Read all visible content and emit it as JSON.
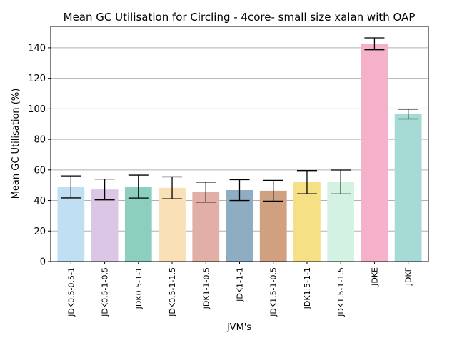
{
  "chart_data": {
    "type": "bar",
    "title": "Mean GC Utilisation for Circling - 4core- small size xalan with OAP",
    "xlabel": "JVM's",
    "ylabel": "Mean GC Utilisation (%)",
    "ylim": [
      0,
      154
    ],
    "yticks": [
      0,
      20,
      40,
      60,
      80,
      100,
      120,
      140
    ],
    "grid": "horizontal",
    "categories": [
      "JDK0.5-0.5-1",
      "JDK0.5-1-0.5",
      "JDK0.5-1-1",
      "JDK0.5-1-1.5",
      "JDK1-1-0.5",
      "JDK1-1-1",
      "JDK1.5-1-0.5",
      "JDK1.5-1-1",
      "JDK1.5-1-1.5",
      "JDKE",
      "JDKF"
    ],
    "values": [
      48.9,
      47.2,
      49.1,
      48.3,
      45.5,
      46.8,
      46.4,
      52.0,
      52.1,
      142.6,
      96.6
    ],
    "error": [
      7.2,
      6.8,
      7.5,
      7.2,
      6.5,
      6.8,
      6.8,
      7.6,
      7.8,
      3.9,
      3.2
    ],
    "colors": [
      "#c0dff2",
      "#dbc6e5",
      "#8ccfbf",
      "#f9e0b7",
      "#e2afa6",
      "#8eadc2",
      "#d1a080",
      "#f6e086",
      "#d3f2e1",
      "#f5b1c9",
      "#a5dbd4"
    ]
  }
}
